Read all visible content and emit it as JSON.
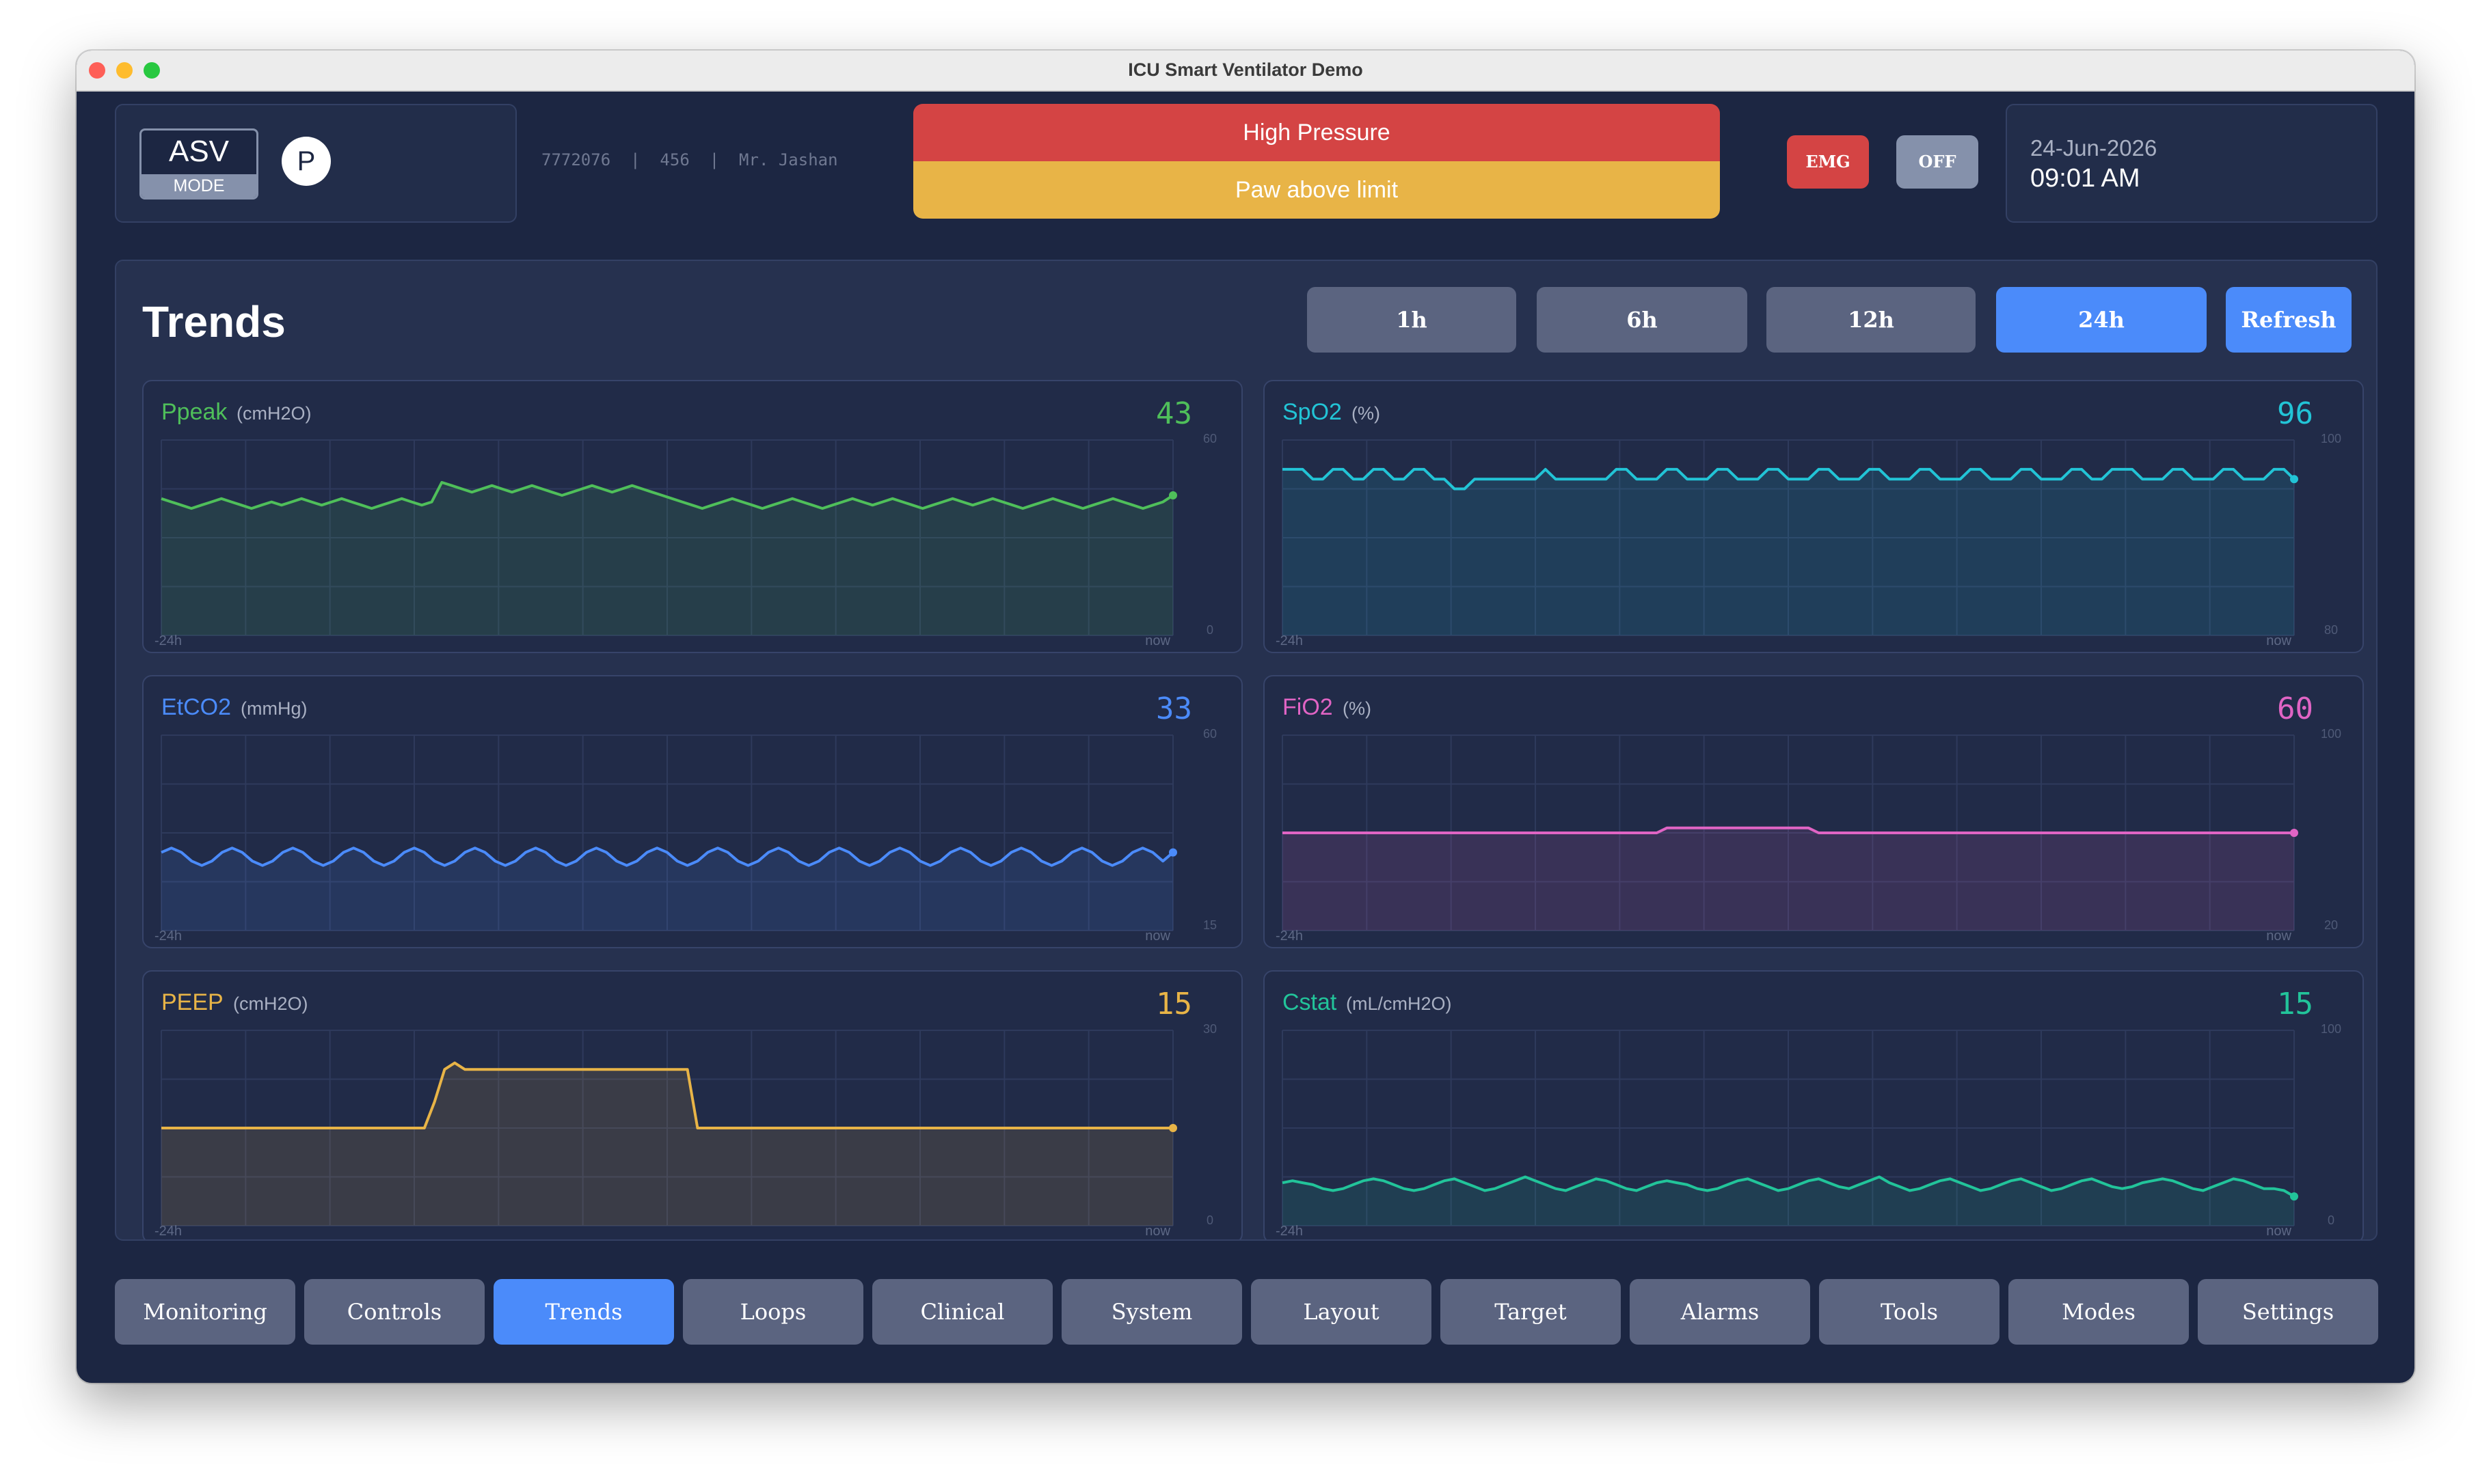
{
  "window": {
    "title": "ICU Smart Ventilator Demo"
  },
  "header": {
    "mode": {
      "name": "ASV",
      "label": "MODE"
    },
    "badge": "P",
    "patient": {
      "id": "7772076",
      "bed": "456",
      "name": "Mr. Jashan",
      "separator": "|"
    },
    "alarm": {
      "title": "High Pressure",
      "detail": "Paw above limit"
    },
    "emg_label": "EMG",
    "off_label": "OFF",
    "date": "24-Jun-2026",
    "time": "09:01 AM"
  },
  "trends": {
    "title": "Trends",
    "ranges": [
      "1h",
      "6h",
      "12h",
      "24h"
    ],
    "active_range": "24h",
    "refresh_label": "Refresh"
  },
  "colors": {
    "ppeak": "#4fbf5a",
    "spo2": "#22c4d6",
    "etco2": "#4b8bfa",
    "fio2": "#e064c4",
    "peep": "#e8b447",
    "cstat": "#22c49a",
    "alarm_red": "#d44444",
    "alarm_amber": "#e8b447",
    "active_blue": "#4b8bfa"
  },
  "chart_data": [
    {
      "id": "ppeak",
      "type": "area",
      "title": "Ppeak",
      "unit": "(cmH2O)",
      "current": "43",
      "color": "#4fbf5a",
      "ylim": [
        0,
        60
      ],
      "y_ticks": [
        "60",
        "0"
      ],
      "x_ticks": [
        "-24h",
        "now"
      ],
      "values": [
        42,
        41,
        40,
        39,
        40,
        41,
        42,
        41,
        40,
        39,
        40,
        41,
        40,
        41,
        42,
        41,
        40,
        41,
        42,
        41,
        40,
        39,
        40,
        41,
        42,
        41,
        40,
        41,
        47,
        46,
        45,
        44,
        45,
        46,
        45,
        44,
        45,
        46,
        45,
        44,
        43,
        44,
        45,
        46,
        45,
        44,
        45,
        46,
        45,
        44,
        43,
        42,
        41,
        40,
        39,
        40,
        41,
        42,
        41,
        40,
        39,
        40,
        41,
        42,
        41,
        40,
        39,
        40,
        41,
        42,
        41,
        40,
        41,
        42,
        41,
        40,
        39,
        40,
        41,
        42,
        41,
        40,
        41,
        42,
        41,
        40,
        39,
        40,
        41,
        42,
        41,
        40,
        39,
        40,
        41,
        42,
        41,
        40,
        39,
        40,
        41,
        43
      ]
    },
    {
      "id": "spo2",
      "type": "area",
      "title": "SpO2",
      "unit": "(%)",
      "current": "96",
      "color": "#22c4d6",
      "ylim": [
        80,
        100
      ],
      "y_ticks": [
        "100",
        "80"
      ],
      "x_ticks": [
        "-24h",
        "now"
      ],
      "values": [
        97,
        97,
        97,
        96,
        96,
        97,
        97,
        96,
        96,
        97,
        97,
        96,
        96,
        97,
        97,
        96,
        96,
        95,
        95,
        96,
        96,
        96,
        96,
        96,
        96,
        96,
        97,
        96,
        96,
        96,
        96,
        96,
        96,
        97,
        97,
        96,
        96,
        96,
        97,
        97,
        96,
        96,
        96,
        97,
        97,
        96,
        96,
        96,
        97,
        97,
        96,
        96,
        96,
        97,
        97,
        96,
        96,
        96,
        97,
        97,
        96,
        96,
        96,
        97,
        97,
        96,
        96,
        96,
        97,
        97,
        96,
        96,
        96,
        97,
        97,
        96,
        96,
        96,
        97,
        97,
        96,
        96,
        97,
        97,
        97,
        96,
        96,
        96,
        97,
        97,
        96,
        96,
        96,
        97,
        97,
        96,
        96,
        96,
        97,
        97,
        96
      ]
    },
    {
      "id": "etco2",
      "type": "area",
      "title": "EtCO2",
      "unit": "(mmHg)",
      "current": "33",
      "color": "#4b8bfa",
      "ylim": [
        15,
        60
      ],
      "y_ticks": [
        "60",
        "15"
      ],
      "x_ticks": [
        "-24h",
        "now"
      ],
      "values": [
        33,
        34,
        33,
        31,
        30,
        31,
        33,
        34,
        33,
        31,
        30,
        31,
        33,
        34,
        33,
        31,
        30,
        31,
        33,
        34,
        33,
        31,
        30,
        31,
        33,
        34,
        33,
        31,
        30,
        31,
        33,
        34,
        33,
        31,
        30,
        31,
        33,
        34,
        33,
        31,
        30,
        31,
        33,
        34,
        33,
        31,
        30,
        31,
        33,
        34,
        33,
        31,
        30,
        31,
        33,
        34,
        33,
        31,
        30,
        31,
        33,
        34,
        33,
        31,
        30,
        31,
        33,
        34,
        33,
        31,
        30,
        31,
        33,
        34,
        33,
        31,
        30,
        31,
        33,
        34,
        33,
        31,
        30,
        31,
        33,
        34,
        33,
        31,
        30,
        31,
        33,
        34,
        33,
        31,
        30,
        31,
        33,
        34,
        33,
        31,
        33
      ]
    },
    {
      "id": "fio2",
      "type": "area",
      "title": "FiO2",
      "unit": "(%)",
      "current": "60",
      "color": "#e064c4",
      "ylim": [
        20,
        100
      ],
      "y_ticks": [
        "100",
        "20"
      ],
      "x_ticks": [
        "-24h",
        "now"
      ],
      "values": [
        60,
        60,
        60,
        60,
        60,
        60,
        60,
        60,
        60,
        60,
        60,
        60,
        60,
        60,
        60,
        60,
        60,
        60,
        60,
        60,
        60,
        60,
        60,
        60,
        60,
        60,
        60,
        60,
        60,
        60,
        60,
        60,
        60,
        60,
        60,
        60,
        60,
        60,
        62,
        62,
        62,
        62,
        62,
        62,
        62,
        62,
        62,
        62,
        62,
        62,
        62,
        62,
        62,
        60,
        60,
        60,
        60,
        60,
        60,
        60,
        60,
        60,
        60,
        60,
        60,
        60,
        60,
        60,
        60,
        60,
        60,
        60,
        60,
        60,
        60,
        60,
        60,
        60,
        60,
        60,
        60,
        60,
        60,
        60,
        60,
        60,
        60,
        60,
        60,
        60,
        60,
        60,
        60,
        60,
        60,
        60,
        60,
        60,
        60,
        60,
        60
      ]
    },
    {
      "id": "peep",
      "type": "area",
      "title": "PEEP",
      "unit": "(cmH2O)",
      "current": "15",
      "color": "#e8b447",
      "ylim": [
        0,
        30
      ],
      "y_ticks": [
        "30",
        "0"
      ],
      "x_ticks": [
        "-24h",
        "now"
      ],
      "values": [
        15,
        15,
        15,
        15,
        15,
        15,
        15,
        15,
        15,
        15,
        15,
        15,
        15,
        15,
        15,
        15,
        15,
        15,
        15,
        15,
        15,
        15,
        15,
        15,
        15,
        15,
        15,
        19,
        24,
        25,
        24,
        24,
        24,
        24,
        24,
        24,
        24,
        24,
        24,
        24,
        24,
        24,
        24,
        24,
        24,
        24,
        24,
        24,
        24,
        24,
        24,
        24,
        24,
        15,
        15,
        15,
        15,
        15,
        15,
        15,
        15,
        15,
        15,
        15,
        15,
        15,
        15,
        15,
        15,
        15,
        15,
        15,
        15,
        15,
        15,
        15,
        15,
        15,
        15,
        15,
        15,
        15,
        15,
        15,
        15,
        15,
        15,
        15,
        15,
        15,
        15,
        15,
        15,
        15,
        15,
        15,
        15,
        15,
        15,
        15,
        15
      ]
    },
    {
      "id": "cstat",
      "type": "area",
      "title": "Cstat",
      "unit": "(mL/cmH2O)",
      "current": "15",
      "color": "#22c49a",
      "ylim": [
        0,
        100
      ],
      "y_ticks": [
        "100",
        "0"
      ],
      "x_ticks": [
        "-24h",
        "now"
      ],
      "values": [
        22,
        23,
        22,
        21,
        19,
        18,
        19,
        21,
        23,
        24,
        23,
        21,
        19,
        18,
        19,
        21,
        23,
        24,
        22,
        20,
        18,
        19,
        21,
        23,
        25,
        23,
        21,
        19,
        18,
        20,
        22,
        24,
        23,
        21,
        19,
        18,
        20,
        22,
        23,
        22,
        21,
        19,
        18,
        19,
        21,
        23,
        24,
        22,
        20,
        18,
        19,
        21,
        23,
        24,
        22,
        20,
        19,
        21,
        23,
        25,
        22,
        20,
        18,
        19,
        21,
        23,
        24,
        22,
        20,
        18,
        19,
        21,
        23,
        24,
        22,
        20,
        18,
        19,
        21,
        23,
        24,
        22,
        20,
        19,
        20,
        22,
        23,
        24,
        23,
        21,
        19,
        18,
        20,
        22,
        24,
        23,
        21,
        19,
        19,
        18,
        15
      ]
    }
  ],
  "nav": {
    "items": [
      "Monitoring",
      "Controls",
      "Trends",
      "Loops",
      "Clinical",
      "System",
      "Layout",
      "Target",
      "Alarms",
      "Tools",
      "Modes",
      "Settings"
    ],
    "active": "Trends"
  }
}
